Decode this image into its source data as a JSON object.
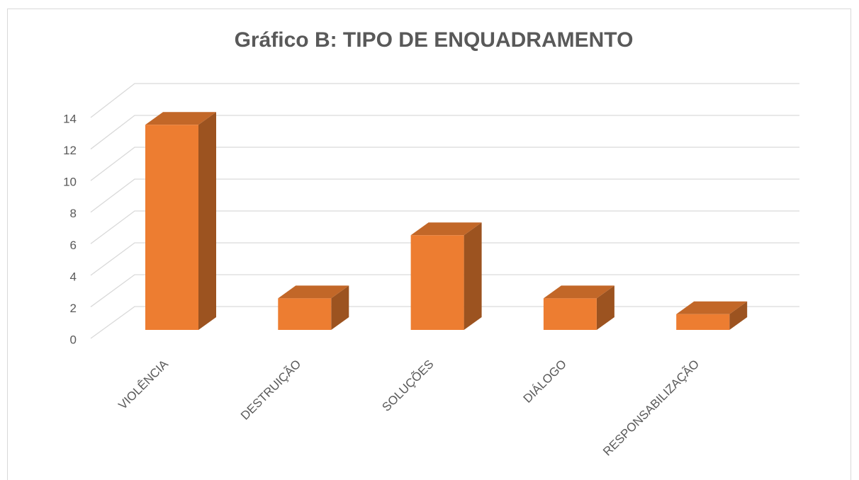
{
  "chart_data": {
    "type": "bar3d",
    "title": "Gráfico B: TIPO DE ENQUADRAMENTO",
    "categories": [
      "VIOLÊNCIA",
      "DESTRUIÇÃO",
      "SOLUÇÕES",
      "DIÁLOGO",
      "RESPONSABILIZAÇÃO"
    ],
    "values": [
      13,
      2,
      6,
      2,
      1
    ],
    "color": "#ed7d31",
    "ylim": [
      0,
      14
    ],
    "yticks": [
      0,
      2,
      4,
      6,
      8,
      10,
      12,
      14
    ],
    "grid": true
  }
}
